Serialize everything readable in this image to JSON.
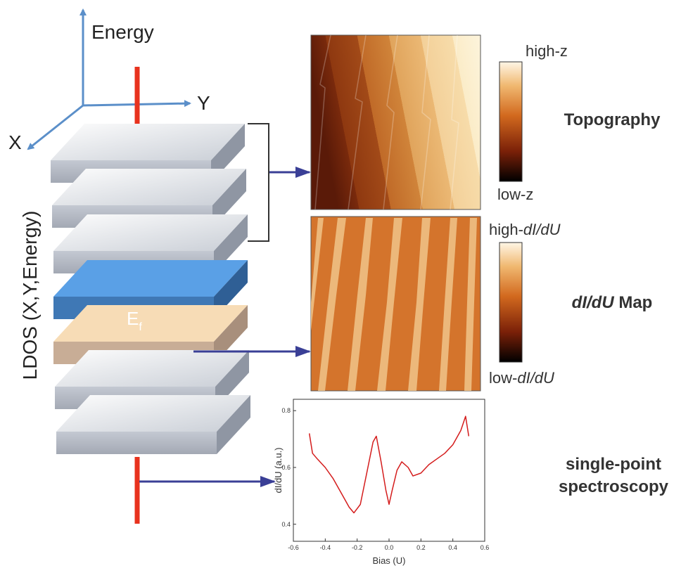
{
  "axes": {
    "energy": "Energy",
    "x": "X",
    "y": "Y"
  },
  "stack_label": "LDOS (X,Y,Energy)",
  "fermi_label": {
    "main": "E",
    "sub": "f"
  },
  "topography": {
    "title": "Topography",
    "high": "high-z",
    "low": "low-z"
  },
  "didu_map": {
    "title_italic": "dI/dU",
    "title_rest": " Map",
    "high_prefix": "high-",
    "high_italic": "dI/dU",
    "low_prefix": "low-",
    "low_italic": "dI/dU"
  },
  "spectroscopy": {
    "title_line1": "single-point",
    "title_line2": "spectroscopy"
  },
  "chart_data": {
    "type": "line",
    "x_label": "Bias (U)",
    "y_label": "dI/dU (a.u.)",
    "x": [
      -0.5,
      -0.48,
      -0.45,
      -0.4,
      -0.35,
      -0.3,
      -0.25,
      -0.22,
      -0.18,
      -0.14,
      -0.1,
      -0.08,
      -0.05,
      -0.02,
      0.0,
      0.02,
      0.05,
      0.08,
      0.12,
      0.15,
      0.2,
      0.25,
      0.3,
      0.35,
      0.4,
      0.45,
      0.48,
      0.5
    ],
    "series": [
      {
        "color": "#d41c1c",
        "values": [
          0.72,
          0.65,
          0.63,
          0.6,
          0.56,
          0.51,
          0.46,
          0.44,
          0.47,
          0.58,
          0.69,
          0.71,
          0.62,
          0.52,
          0.47,
          0.52,
          0.59,
          0.62,
          0.6,
          0.57,
          0.58,
          0.61,
          0.63,
          0.65,
          0.68,
          0.73,
          0.78,
          0.71
        ]
      }
    ],
    "xlim": [
      -0.6,
      0.6
    ],
    "ylim": [
      0.34,
      0.84
    ],
    "xticks": [
      -0.6,
      -0.4,
      -0.2,
      {
        "value": 0,
        "label": "0.0"
      },
      0.2,
      0.4,
      0.6
    ],
    "yticks": [
      0.4,
      0.6,
      0.8
    ]
  }
}
